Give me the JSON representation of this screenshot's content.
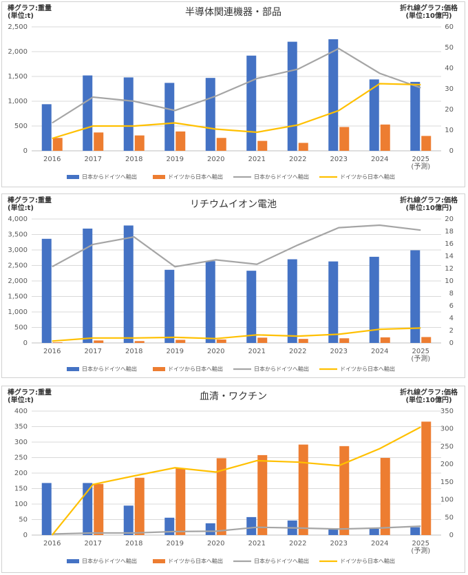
{
  "chart_data": [
    {
      "type": "combo",
      "title": "半導体関連機器・部品",
      "y_label": "棒グラフ:重量\n(単位:t)",
      "y2_label": "折れ線グラフ:価格\n(単位:10億円)",
      "categories": [
        "2016",
        "2017",
        "2018",
        "2019",
        "2020",
        "2021",
        "2022",
        "2023",
        "2024",
        "2025\n(予測)"
      ],
      "ylim": [
        0,
        2500
      ],
      "yticks": [
        0,
        500,
        {
          "value": 1000,
          "label": "1,000"
        },
        {
          "value": 1500,
          "label": "1,500"
        },
        {
          "value": 2000,
          "label": "2,000"
        },
        {
          "value": 2500,
          "label": "2,500"
        }
      ],
      "y2lim": [
        0,
        60
      ],
      "y2ticks": [
        0,
        10,
        20,
        30,
        40,
        50,
        60
      ],
      "grid": true,
      "series": [
        {
          "name": "日本からドイツへ輸出",
          "type": "bar",
          "color": "#4472c4",
          "values": [
            940,
            1520,
            1480,
            1370,
            1470,
            1920,
            2200,
            2250,
            1440,
            1390
          ]
        },
        {
          "name": "ドイツから日本へ輸出",
          "type": "bar",
          "color": "#ed7d31",
          "values": [
            260,
            370,
            310,
            390,
            260,
            200,
            160,
            480,
            530,
            300
          ]
        },
        {
          "name": "日本からドイツへ輸出",
          "type": "line",
          "axis": "y2",
          "color": "#a5a5a5",
          "values": [
            13.5,
            26,
            24,
            19.5,
            26.5,
            35,
            39.5,
            49.5,
            37.5,
            30.5
          ]
        },
        {
          "name": "ドイツから日本へ輸出",
          "type": "line",
          "axis": "y2",
          "color": "#ffc000",
          "values": [
            6,
            12,
            12,
            13.5,
            10.5,
            9,
            12.5,
            19.5,
            32.5,
            32
          ]
        }
      ]
    },
    {
      "type": "combo",
      "title": "リチウムイオン電池",
      "y_label": "棒グラフ:重量\n(単位:t)",
      "y2_label": "折れ線グラフ:価格\n(単位:10億円)",
      "categories": [
        "2016",
        "2017",
        "2018",
        "2019",
        "2020",
        "2021",
        "2022",
        "2023",
        "2024",
        "2025\n(予測)"
      ],
      "ylim": [
        0,
        4000
      ],
      "yticks": [
        0,
        500,
        {
          "value": 1000,
          "label": "1,000"
        },
        {
          "value": 1500,
          "label": "1,500"
        },
        {
          "value": 2000,
          "label": "2,000"
        },
        {
          "value": 2500,
          "label": "2,500"
        },
        {
          "value": 3000,
          "label": "3,000"
        },
        {
          "value": 3500,
          "label": "3,500"
        },
        {
          "value": 4000,
          "label": "4,000"
        }
      ],
      "y2lim": [
        0,
        20
      ],
      "y2ticks": [
        0,
        2,
        4,
        6,
        8,
        10,
        12,
        14,
        16,
        18,
        20
      ],
      "grid": true,
      "series": [
        {
          "name": "日本からドイツへ輸出",
          "type": "bar",
          "color": "#4472c4",
          "values": [
            3360,
            3690,
            3790,
            2360,
            2640,
            2330,
            2700,
            2630,
            2780,
            2990
          ]
        },
        {
          "name": "ドイツから日本へ輸出",
          "type": "bar",
          "color": "#ed7d31",
          "values": [
            20,
            80,
            60,
            100,
            110,
            170,
            130,
            150,
            180,
            190
          ]
        },
        {
          "name": "日本からドイツへ輸出",
          "type": "line",
          "axis": "y2",
          "color": "#a5a5a5",
          "values": [
            12.3,
            15.9,
            17.1,
            12.3,
            13.4,
            12.7,
            15.8,
            18.6,
            19.0,
            18.2
          ]
        },
        {
          "name": "ドイツから日本へ輸出",
          "type": "line",
          "axis": "y2",
          "color": "#ffc000",
          "values": [
            0.3,
            0.8,
            0.8,
            0.9,
            0.7,
            1.3,
            1.1,
            1.4,
            2.2,
            2.4
          ]
        }
      ]
    },
    {
      "type": "combo",
      "title": "血清・ワクチン",
      "y_label": "棒グラフ:重量\n(単位:t)",
      "y2_label": "折れ線グラフ:価格\n(単位:10億円)",
      "categories": [
        "2016",
        "2017",
        "2018",
        "2019",
        "2020",
        "2021",
        "2022",
        "2023",
        "2024",
        "2025\n(予測)"
      ],
      "ylim": [
        0,
        400
      ],
      "yticks": [
        0,
        50,
        100,
        150,
        200,
        250,
        300,
        350,
        400
      ],
      "y2lim": [
        0,
        350
      ],
      "y2ticks": [
        0,
        50,
        100,
        150,
        200,
        250,
        300,
        350
      ],
      "grid": true,
      "series": [
        {
          "name": "日本からドイツへ輸出",
          "type": "bar",
          "color": "#4472c4",
          "values": [
            168,
            168,
            95,
            56,
            38,
            58,
            47,
            22,
            20,
            25
          ]
        },
        {
          "name": "ドイツから日本へ輸出",
          "type": "bar",
          "color": "#ed7d31",
          "values": [
            0,
            165,
            185,
            215,
            248,
            258,
            292,
            287,
            249,
            366
          ]
        },
        {
          "name": "日本からドイツへ輸出",
          "type": "line",
          "axis": "y2",
          "color": "#a5a5a5",
          "values": [
            3,
            6,
            6,
            10,
            11,
            22,
            20,
            17,
            20,
            25
          ]
        },
        {
          "name": "ドイツから日本へ輸出",
          "type": "line",
          "axis": "y2",
          "color": "#ffc000",
          "values": [
            0,
            143,
            167,
            190,
            178,
            210,
            206,
            196,
            244,
            305
          ]
        }
      ]
    }
  ]
}
